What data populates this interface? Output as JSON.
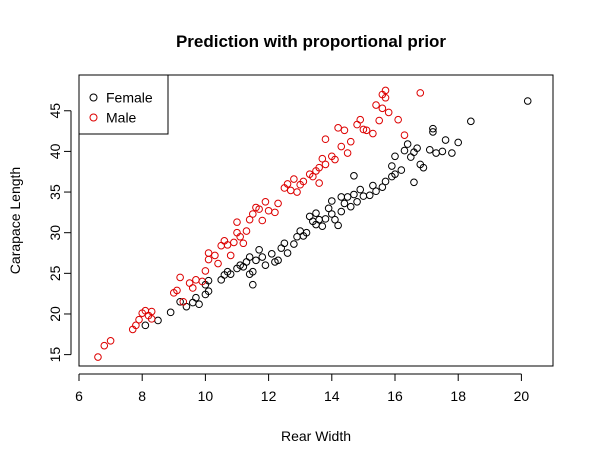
{
  "chart_data": {
    "type": "scatter",
    "title": "Prediction with proportional prior",
    "xlabel": "Rear Width",
    "ylabel": "Carapace Length",
    "xlim": [
      6,
      21
    ],
    "ylim": [
      13.6,
      49.4
    ],
    "xticks": [
      6,
      8,
      10,
      12,
      14,
      16,
      18,
      20
    ],
    "yticks": [
      15,
      20,
      25,
      30,
      35,
      40,
      45
    ],
    "legend_position": "top-left",
    "grid": false,
    "series": [
      {
        "name": "Female",
        "color": "#000000",
        "marker": "open-circle",
        "points": [
          [
            8.1,
            18.6
          ],
          [
            8.5,
            19.2
          ],
          [
            8.9,
            20.2
          ],
          [
            9.2,
            21.5
          ],
          [
            9.4,
            20.9
          ],
          [
            9.6,
            21.4
          ],
          [
            9.7,
            22.0
          ],
          [
            9.8,
            21.2
          ],
          [
            10.0,
            22.4
          ],
          [
            10.1,
            22.8
          ],
          [
            10.0,
            23.6
          ],
          [
            10.1,
            24.1
          ],
          [
            10.5,
            24.2
          ],
          [
            10.6,
            24.8
          ],
          [
            10.7,
            25.2
          ],
          [
            10.8,
            24.9
          ],
          [
            11.0,
            25.6
          ],
          [
            11.1,
            26.0
          ],
          [
            11.2,
            25.8
          ],
          [
            11.3,
            26.4
          ],
          [
            11.4,
            27.0
          ],
          [
            11.4,
            24.9
          ],
          [
            11.5,
            23.6
          ],
          [
            11.5,
            25.2
          ],
          [
            11.6,
            26.6
          ],
          [
            11.7,
            27.9
          ],
          [
            11.8,
            27.0
          ],
          [
            11.9,
            26.0
          ],
          [
            12.1,
            27.4
          ],
          [
            12.2,
            26.4
          ],
          [
            12.3,
            26.6
          ],
          [
            12.4,
            28.1
          ],
          [
            12.5,
            28.7
          ],
          [
            12.6,
            27.5
          ],
          [
            12.8,
            28.6
          ],
          [
            12.9,
            29.5
          ],
          [
            13.0,
            30.2
          ],
          [
            13.1,
            29.6
          ],
          [
            13.2,
            30.0
          ],
          [
            13.3,
            32.0
          ],
          [
            13.4,
            31.4
          ],
          [
            13.5,
            31.0
          ],
          [
            13.5,
            32.4
          ],
          [
            13.6,
            31.6
          ],
          [
            13.7,
            30.8
          ],
          [
            13.8,
            31.7
          ],
          [
            13.9,
            33.0
          ],
          [
            14.0,
            32.3
          ],
          [
            14.0,
            33.9
          ],
          [
            14.1,
            31.6
          ],
          [
            14.2,
            30.9
          ],
          [
            14.3,
            32.6
          ],
          [
            14.3,
            34.4
          ],
          [
            14.4,
            33.6
          ],
          [
            14.5,
            34.4
          ],
          [
            14.6,
            33.2
          ],
          [
            14.7,
            34.7
          ],
          [
            14.7,
            37.0
          ],
          [
            14.8,
            33.8
          ],
          [
            14.9,
            35.3
          ],
          [
            15.0,
            34.5
          ],
          [
            15.2,
            34.6
          ],
          [
            15.3,
            35.8
          ],
          [
            15.4,
            35.1
          ],
          [
            15.6,
            35.6
          ],
          [
            15.7,
            36.3
          ],
          [
            15.9,
            36.9
          ],
          [
            15.9,
            38.2
          ],
          [
            16.0,
            37.2
          ],
          [
            16.0,
            39.4
          ],
          [
            16.2,
            37.7
          ],
          [
            16.3,
            40.1
          ],
          [
            16.4,
            40.9
          ],
          [
            16.5,
            39.3
          ],
          [
            16.6,
            39.9
          ],
          [
            16.6,
            36.2
          ],
          [
            16.7,
            40.4
          ],
          [
            16.8,
            38.4
          ],
          [
            16.9,
            38.0
          ],
          [
            17.1,
            40.2
          ],
          [
            17.2,
            42.4
          ],
          [
            17.2,
            42.8
          ],
          [
            17.3,
            39.8
          ],
          [
            17.5,
            40.0
          ],
          [
            17.6,
            41.4
          ],
          [
            17.8,
            39.8
          ],
          [
            18.0,
            41.1
          ],
          [
            18.4,
            43.7
          ],
          [
            20.2,
            46.2
          ]
        ]
      },
      {
        "name": "Male",
        "color": "#dd0000",
        "marker": "open-circle",
        "points": [
          [
            6.6,
            14.7
          ],
          [
            6.8,
            16.1
          ],
          [
            7.0,
            16.7
          ],
          [
            7.7,
            18.1
          ],
          [
            7.8,
            18.6
          ],
          [
            7.9,
            19.3
          ],
          [
            8.0,
            20.1
          ],
          [
            8.1,
            20.4
          ],
          [
            8.2,
            19.8
          ],
          [
            8.3,
            20.3
          ],
          [
            8.3,
            19.4
          ],
          [
            9.0,
            22.6
          ],
          [
            9.1,
            22.9
          ],
          [
            9.2,
            24.5
          ],
          [
            9.3,
            21.5
          ],
          [
            9.5,
            23.8
          ],
          [
            9.6,
            23.2
          ],
          [
            9.7,
            24.2
          ],
          [
            9.9,
            24.0
          ],
          [
            10.0,
            25.3
          ],
          [
            10.1,
            26.7
          ],
          [
            10.1,
            27.5
          ],
          [
            10.3,
            27.2
          ],
          [
            10.4,
            26.2
          ],
          [
            10.5,
            28.4
          ],
          [
            10.6,
            29.0
          ],
          [
            10.7,
            28.5
          ],
          [
            10.8,
            27.2
          ],
          [
            10.9,
            28.8
          ],
          [
            11.0,
            30.0
          ],
          [
            11.0,
            31.3
          ],
          [
            11.1,
            29.5
          ],
          [
            11.2,
            28.7
          ],
          [
            11.3,
            30.2
          ],
          [
            11.4,
            31.6
          ],
          [
            11.5,
            32.3
          ],
          [
            11.6,
            33.1
          ],
          [
            11.7,
            32.9
          ],
          [
            11.8,
            31.5
          ],
          [
            11.9,
            33.8
          ],
          [
            12.0,
            32.7
          ],
          [
            12.2,
            32.5
          ],
          [
            12.3,
            33.6
          ],
          [
            12.5,
            35.5
          ],
          [
            12.6,
            36.0
          ],
          [
            12.7,
            35.2
          ],
          [
            12.8,
            36.6
          ],
          [
            12.9,
            35.0
          ],
          [
            13.0,
            35.9
          ],
          [
            13.1,
            36.3
          ],
          [
            13.3,
            37.2
          ],
          [
            13.4,
            36.9
          ],
          [
            13.5,
            37.6
          ],
          [
            13.6,
            38.0
          ],
          [
            13.6,
            36.1
          ],
          [
            13.7,
            39.1
          ],
          [
            13.8,
            38.4
          ],
          [
            13.8,
            41.5
          ],
          [
            14.0,
            39.4
          ],
          [
            14.1,
            39.0
          ],
          [
            14.2,
            42.9
          ],
          [
            14.3,
            40.6
          ],
          [
            14.4,
            42.6
          ],
          [
            14.5,
            39.8
          ],
          [
            14.6,
            41.2
          ],
          [
            14.8,
            43.3
          ],
          [
            14.9,
            43.9
          ],
          [
            15.0,
            42.7
          ],
          [
            15.1,
            42.6
          ],
          [
            15.3,
            42.2
          ],
          [
            15.4,
            45.7
          ],
          [
            15.5,
            43.8
          ],
          [
            15.6,
            45.3
          ],
          [
            15.6,
            47.0
          ],
          [
            15.7,
            46.6
          ],
          [
            15.7,
            47.5
          ],
          [
            15.8,
            44.8
          ],
          [
            16.1,
            43.9
          ],
          [
            16.3,
            42.0
          ],
          [
            16.8,
            47.2
          ]
        ]
      }
    ]
  }
}
